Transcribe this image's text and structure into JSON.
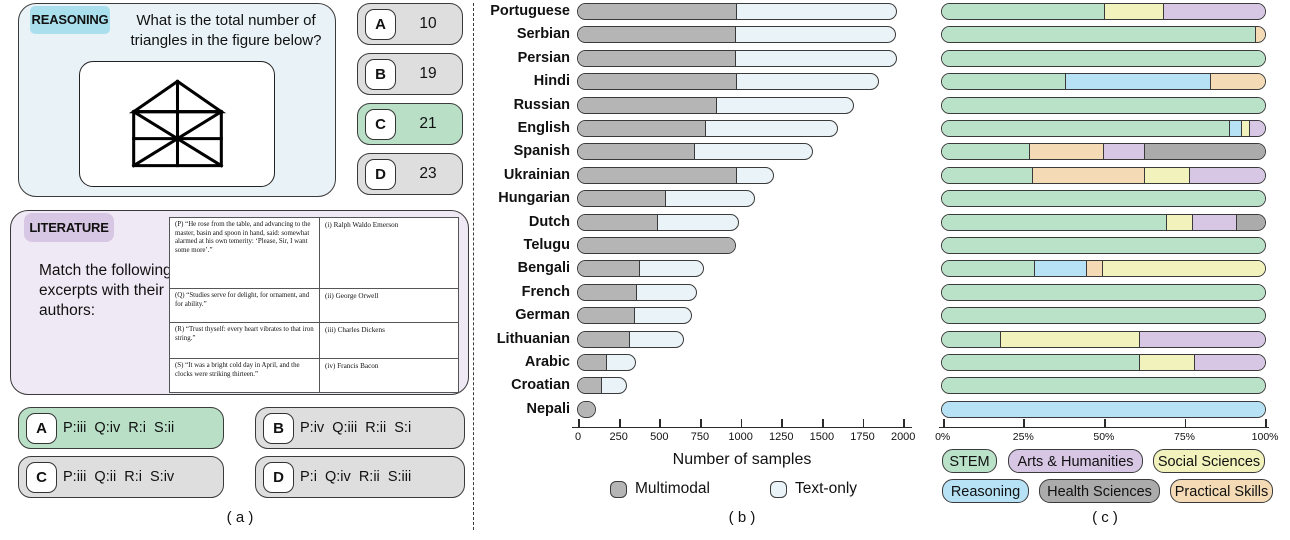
{
  "panel_a": {
    "label": "( a )",
    "reasoning": {
      "tag": "REASONING",
      "question_line1": "What is the total number of",
      "question_line2": "triangles  in the figure below?",
      "figure": "house-with-triangles",
      "options": [
        {
          "letter": "A",
          "text": "10",
          "correct": false
        },
        {
          "letter": "B",
          "text": "19",
          "correct": false
        },
        {
          "letter": "C",
          "text": "21",
          "correct": true
        },
        {
          "letter": "D",
          "text": "23",
          "correct": false
        }
      ]
    },
    "literature": {
      "tag": "LITERATURE",
      "prompt": "Match the following excerpts with their authors:",
      "table": [
        {
          "excerpt": "(P) “He rose from the table, and advancing to the master, basin and spoon in hand, said: somewhat alarmed at his own temerity: ‘Please, Sir, I want some more’.”",
          "author": "(i) Ralph Waldo Emerson"
        },
        {
          "excerpt": "(Q) “Studies serve for delight, for ornament, and for ability.”",
          "author": "(ii) George Orwell"
        },
        {
          "excerpt": "(R) “Trust thyself: every heart vibrates to that iron string.”",
          "author": "(iii) Charles Dickens"
        },
        {
          "excerpt": "(S) “It was a bright cold day in April, and the clocks were striking thirteen.”",
          "author": "(iv) Francis Bacon"
        }
      ],
      "options": [
        {
          "letter": "A",
          "text": "P:iii  Q:iv  R:i  S:ii",
          "correct": true
        },
        {
          "letter": "B",
          "text": "P:iv  Q:iii  R:ii  S:i",
          "correct": false
        },
        {
          "letter": "C",
          "text": "P:iii  Q:ii  R:i  S:iv",
          "correct": false
        },
        {
          "letter": "D",
          "text": "P:i  Q:iv  R:ii  S:iii",
          "correct": false
        }
      ]
    }
  },
  "chart_data": [
    {
      "type": "bar",
      "panel_label": "( b )",
      "orientation": "horizontal",
      "stacked": true,
      "xlabel": "Number of samples",
      "xlim": [
        0,
        2000
      ],
      "xticks": [
        0,
        250,
        500,
        750,
        1000,
        1250,
        1500,
        1750,
        2000
      ],
      "categories": [
        "Portuguese",
        "Serbian",
        "Persian",
        "Hindi",
        "Russian",
        "English",
        "Spanish",
        "Ukrainian",
        "Hungarian",
        "Dutch",
        "Telugu",
        "Bengali",
        "French",
        "German",
        "Lithuanian",
        "Arabic",
        "Croatian",
        "Nepali"
      ],
      "series": [
        {
          "name": "Multimodal",
          "color": "#b5b5b5",
          "values": [
            975,
            970,
            970,
            975,
            855,
            790,
            720,
            975,
            540,
            490,
            980,
            380,
            365,
            350,
            320,
            180,
            150,
            115
          ]
        },
        {
          "name": "Text-only",
          "color": "#eaf3f7",
          "values": [
            990,
            990,
            1000,
            880,
            850,
            815,
            730,
            235,
            555,
            505,
            0,
            400,
            375,
            355,
            340,
            185,
            155,
            0
          ]
        }
      ]
    },
    {
      "type": "bar",
      "panel_label": "( c )",
      "orientation": "horizontal",
      "stacked": true,
      "unit": "percent",
      "xticks": [
        "0%",
        "25%",
        "50%",
        "75%",
        "100%"
      ],
      "legend": [
        {
          "name": "STEM",
          "color": "#b9e2c9"
        },
        {
          "name": "Arts & Humanities",
          "color": "#d8c7e4"
        },
        {
          "name": "Social Sciences",
          "color": "#f2f3bc"
        },
        {
          "name": "Reasoning",
          "color": "#b7e2f5"
        },
        {
          "name": "Health Sciences",
          "color": "#ababab"
        },
        {
          "name": "Practical Skills",
          "color": "#f4dbb5"
        }
      ],
      "rows": [
        {
          "language": "Portuguese",
          "segments": [
            {
              "name": "STEM",
              "pct": 50
            },
            {
              "name": "Social Sciences",
              "pct": 18.5
            },
            {
              "name": "Arts & Humanities",
              "pct": 31.5
            }
          ]
        },
        {
          "language": "Serbian",
          "segments": [
            {
              "name": "STEM",
              "pct": 97
            },
            {
              "name": "Practical Skills",
              "pct": 3
            }
          ]
        },
        {
          "language": "Persian",
          "segments": [
            {
              "name": "STEM",
              "pct": 100
            }
          ]
        },
        {
          "language": "Hindi",
          "segments": [
            {
              "name": "STEM",
              "pct": 38
            },
            {
              "name": "Reasoning",
              "pct": 45
            },
            {
              "name": "Practical Skills",
              "pct": 17
            }
          ]
        },
        {
          "language": "Russian",
          "segments": [
            {
              "name": "STEM",
              "pct": 100
            }
          ]
        },
        {
          "language": "English",
          "segments": [
            {
              "name": "STEM",
              "pct": 89
            },
            {
              "name": "Reasoning",
              "pct": 3.5
            },
            {
              "name": "Social Sciences",
              "pct": 2.5
            },
            {
              "name": "Arts & Humanities",
              "pct": 5
            }
          ]
        },
        {
          "language": "Spanish",
          "segments": [
            {
              "name": "STEM",
              "pct": 27
            },
            {
              "name": "Practical Skills",
              "pct": 23
            },
            {
              "name": "Arts & Humanities",
              "pct": 12.5
            },
            {
              "name": "Health Sciences",
              "pct": 37.5
            }
          ]
        },
        {
          "language": "Ukrainian",
          "segments": [
            {
              "name": "STEM",
              "pct": 28
            },
            {
              "name": "Practical Skills",
              "pct": 34.5
            },
            {
              "name": "Social Sciences",
              "pct": 14
            },
            {
              "name": "Arts & Humanities",
              "pct": 23.5
            }
          ]
        },
        {
          "language": "Hungarian",
          "segments": [
            {
              "name": "STEM",
              "pct": 100
            }
          ]
        },
        {
          "language": "Dutch",
          "segments": [
            {
              "name": "STEM",
              "pct": 69.5
            },
            {
              "name": "Social Sciences",
              "pct": 8
            },
            {
              "name": "Arts & Humanities",
              "pct": 13.5
            },
            {
              "name": "Health Sciences",
              "pct": 9
            }
          ]
        },
        {
          "language": "Telugu",
          "segments": [
            {
              "name": "STEM",
              "pct": 100
            }
          ]
        },
        {
          "language": "Bengali",
          "segments": [
            {
              "name": "STEM",
              "pct": 28.5
            },
            {
              "name": "Reasoning",
              "pct": 16
            },
            {
              "name": "Practical Skills",
              "pct": 5
            },
            {
              "name": "Social Sciences",
              "pct": 50.5
            }
          ]
        },
        {
          "language": "French",
          "segments": [
            {
              "name": "STEM",
              "pct": 100
            }
          ]
        },
        {
          "language": "German",
          "segments": [
            {
              "name": "STEM",
              "pct": 100
            }
          ]
        },
        {
          "language": "Lithuanian",
          "segments": [
            {
              "name": "STEM",
              "pct": 18
            },
            {
              "name": "Social Sciences",
              "pct": 43
            },
            {
              "name": "Arts & Humanities",
              "pct": 39
            }
          ]
        },
        {
          "language": "Arabic",
          "segments": [
            {
              "name": "STEM",
              "pct": 61
            },
            {
              "name": "Social Sciences",
              "pct": 17
            },
            {
              "name": "Arts & Humanities",
              "pct": 22
            }
          ]
        },
        {
          "language": "Croatian",
          "segments": [
            {
              "name": "STEM",
              "pct": 100
            }
          ]
        },
        {
          "language": "Nepali",
          "segments": [
            {
              "name": "Reasoning",
              "pct": 100
            }
          ]
        }
      ]
    }
  ]
}
